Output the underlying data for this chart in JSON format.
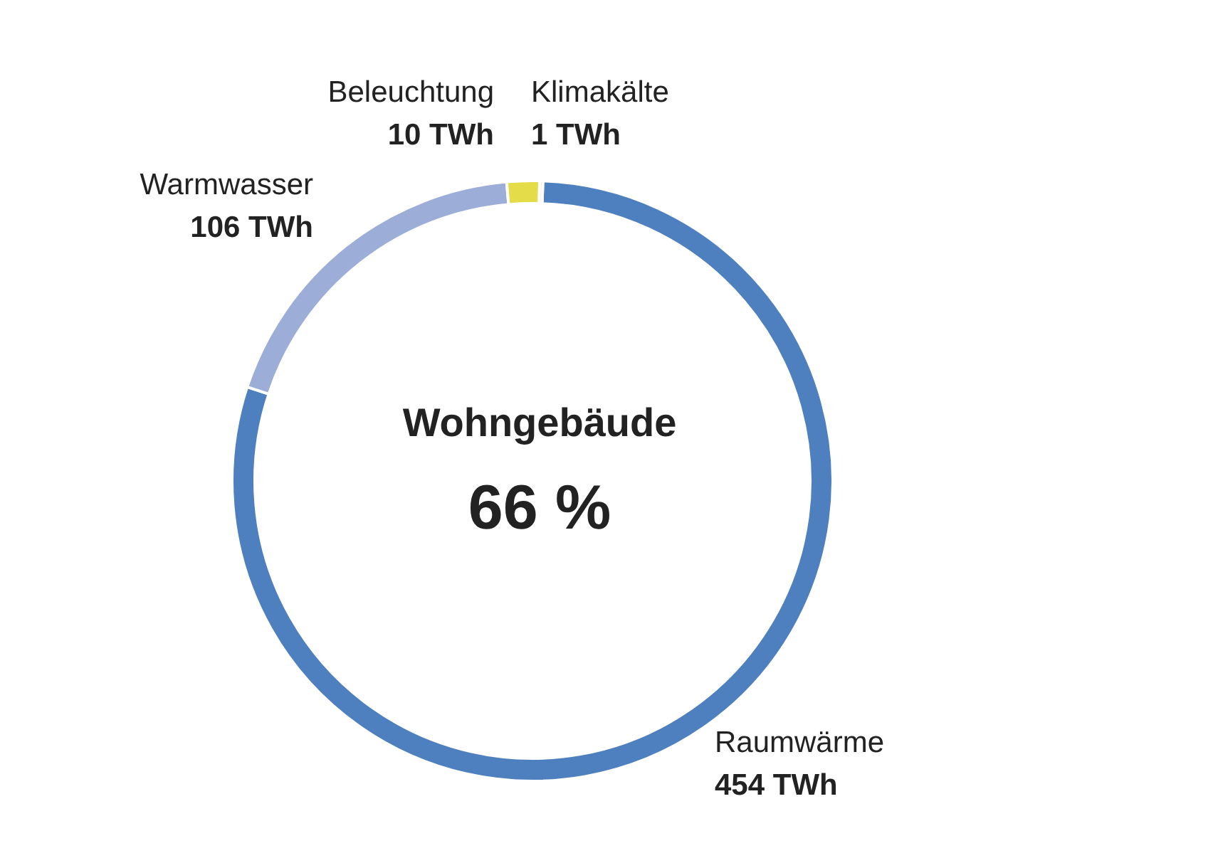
{
  "chart_data": {
    "type": "donut",
    "title": "Wohngebäude",
    "annotations": [
      "66 %"
    ],
    "categories": [
      "Raumwärme",
      "Warmwasser",
      "Beleuchtung",
      "Klimakälte"
    ],
    "values": [
      454,
      106,
      10,
      1
    ],
    "value_labels": [
      "454 TWh",
      "106 TWh",
      "10 TWh",
      "1 TWh"
    ],
    "colors": [
      "#4e7fbf",
      "#9caed7",
      "#e4dc48",
      "#f2ee9a"
    ],
    "legend": false
  }
}
